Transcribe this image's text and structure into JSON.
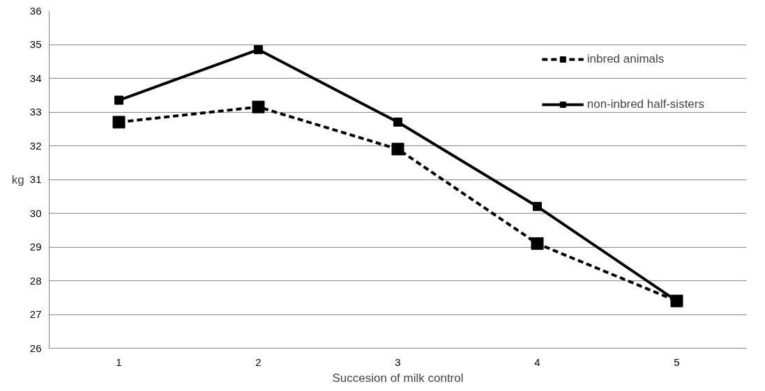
{
  "chart_data": {
    "type": "line",
    "xlabel": "Succesion of milk control",
    "ylabel": "kg",
    "categories": [
      "1",
      "2",
      "3",
      "4",
      "5"
    ],
    "series": [
      {
        "name": "inbred animals",
        "color": "#000000",
        "line_style": "dashed",
        "values": [
          32.7,
          33.15,
          31.9,
          29.1,
          27.4
        ]
      },
      {
        "name": "non-inbred half-sisters",
        "color": "#000000",
        "line_style": "solid",
        "values": [
          33.35,
          34.85,
          32.7,
          30.2,
          27.4
        ]
      }
    ],
    "ylim": [
      26,
      36
    ],
    "yticks": [
      26,
      27,
      28,
      29,
      30,
      31,
      32,
      33,
      34,
      35,
      36
    ],
    "grid": "y",
    "legend": "top right",
    "marker": "square"
  }
}
